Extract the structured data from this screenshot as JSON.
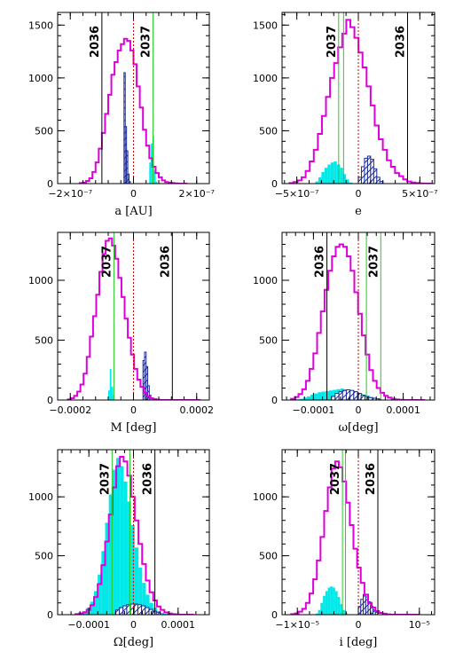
{
  "chart_data": [
    {
      "type": "histogram",
      "xlabel": "a [AU]",
      "xlim": [
        -2.4e-07,
        2.4e-07
      ],
      "ylim": [
        0,
        1620
      ],
      "xticks": [
        {
          "v": -2e-07,
          "label": "−2×10⁻⁷"
        },
        {
          "v": 0,
          "label": "0"
        },
        {
          "v": 2e-07,
          "label": "2×10⁻⁷"
        }
      ],
      "yticks": [
        {
          "v": 0,
          "label": "0"
        },
        {
          "v": 500,
          "label": "500"
        },
        {
          "v": 1000,
          "label": "1000"
        },
        {
          "v": 1500,
          "label": "1500"
        }
      ],
      "magenta": {
        "start": -1.7e-07,
        "step": 1e-08,
        "values": [
          5,
          10,
          25,
          50,
          110,
          200,
          330,
          480,
          660,
          840,
          1030,
          1150,
          1260,
          1320,
          1370,
          1350,
          1260,
          1130,
          920,
          720,
          510,
          360,
          240,
          160,
          100,
          60,
          30,
          15,
          8,
          5,
          2,
          0,
          0,
          0
        ]
      },
      "cyan": {
        "start": 5e-08,
        "step": 5e-09,
        "values": [
          200,
          380,
          450,
          120,
          20
        ]
      },
      "hatch": {
        "start": -3e-08,
        "step": 4e-09,
        "values": [
          1050,
          540,
          310,
          90,
          20
        ]
      },
      "lines": [
        {
          "x": -1e-07,
          "label": "2036",
          "color": "#000000"
        },
        {
          "x": 6.2e-08,
          "label": "2037",
          "color": "#22cc22"
        }
      ],
      "zero_line": true
    },
    {
      "type": "histogram",
      "xlabel": "e",
      "xlim": [
        -6.2e-07,
        6.2e-07
      ],
      "ylim": [
        0,
        1620
      ],
      "xticks": [
        {
          "v": -5e-07,
          "label": "−5×10⁻⁷"
        },
        {
          "v": 0,
          "label": "0"
        },
        {
          "v": 5e-07,
          "label": "5×10⁻⁷"
        }
      ],
      "yticks": [
        {
          "v": 0,
          "label": "0"
        },
        {
          "v": 500,
          "label": "500"
        },
        {
          "v": 1000,
          "label": "1000"
        },
        {
          "v": 1500,
          "label": "1500"
        }
      ],
      "magenta": {
        "start": -5.6e-07,
        "step": 3.3e-08,
        "values": [
          5,
          15,
          30,
          60,
          120,
          210,
          320,
          470,
          640,
          820,
          1000,
          1140,
          1290,
          1420,
          1550,
          1480,
          1380,
          1240,
          1100,
          920,
          740,
          550,
          420,
          320,
          220,
          160,
          100,
          70,
          40,
          20,
          10,
          5,
          2,
          0,
          0
        ]
      },
      "cyan": {
        "start": -3.5e-07,
        "step": 2.5e-08,
        "values": [
          20,
          60,
          110,
          150,
          180,
          200,
          210,
          180,
          150,
          90,
          40,
          10
        ]
      },
      "hatch": {
        "start": 0,
        "step": 2.5e-08,
        "values": [
          60,
          160,
          240,
          260,
          230,
          140,
          60,
          20
        ]
      },
      "lines": [
        {
          "x": -1.6e-07,
          "label": "2037",
          "color": "#22cc22"
        },
        {
          "x": -1.2e-07,
          "label": "",
          "color": "#22cc22"
        },
        {
          "x": 4e-07,
          "label": "2036",
          "color": "#000000"
        }
      ],
      "zero_line": true
    },
    {
      "type": "histogram",
      "xlabel": "M [deg]",
      "xlim": [
        -0.00024,
        0.00024
      ],
      "ylim": [
        0,
        1400
      ],
      "xticks": [
        {
          "v": -0.0002,
          "label": "−0.0002"
        },
        {
          "v": 0,
          "label": "0"
        },
        {
          "v": 0.0002,
          "label": "0.0002"
        }
      ],
      "yticks": [
        {
          "v": 0,
          "label": "0"
        },
        {
          "v": 500,
          "label": "500"
        },
        {
          "v": 1000,
          "label": "1000"
        }
      ],
      "magenta": {
        "start": -0.000208,
        "step": 1e-05,
        "values": [
          5,
          15,
          35,
          70,
          130,
          220,
          360,
          530,
          700,
          880,
          1070,
          1220,
          1330,
          1350,
          1290,
          1180,
          1020,
          860,
          680,
          520,
          380,
          260,
          170,
          110,
          60,
          30,
          15,
          8,
          3,
          0,
          0,
          0,
          0,
          0,
          0,
          0,
          0,
          0,
          0,
          0,
          0,
          0
        ]
      },
      "cyan": {
        "start": -8e-05,
        "step": 5e-06,
        "values": [
          80,
          260,
          110,
          40
        ]
      },
      "hatch": {
        "start": 3e-05,
        "step": 5e-06,
        "values": [
          330,
          400,
          280,
          120,
          40
        ]
      },
      "lines": [
        {
          "x": -6.2e-05,
          "label": "2037",
          "color": "#22cc22"
        },
        {
          "x": 0.000123,
          "label": "2036",
          "color": "#000000"
        }
      ],
      "zero_line": true
    },
    {
      "type": "histogram",
      "xlabel": "ω[deg]",
      "xlim": [
        -0.00017,
        0.00017
      ],
      "ylim": [
        0,
        1400
      ],
      "xticks": [
        {
          "v": -0.0001,
          "label": "−0.0001"
        },
        {
          "v": 0,
          "label": "0"
        },
        {
          "v": 0.0001,
          "label": "0.0001"
        }
      ],
      "yticks": [
        {
          "v": 0,
          "label": "0"
        },
        {
          "v": 500,
          "label": "500"
        },
        {
          "v": 1000,
          "label": "1000"
        }
      ],
      "magenta": {
        "start": -0.00015,
        "step": 8.3e-06,
        "values": [
          10,
          25,
          50,
          90,
          160,
          260,
          390,
          560,
          740,
          920,
          1080,
          1200,
          1280,
          1300,
          1280,
          1200,
          1080,
          900,
          720,
          540,
          380,
          250,
          160,
          100,
          60,
          35,
          20,
          10,
          5,
          2,
          0,
          0,
          0,
          0,
          0,
          0
        ]
      },
      "cyan": {
        "start": -0.00014,
        "step": 8.3e-06,
        "values": [
          5,
          10,
          20,
          30,
          45,
          55,
          65,
          70,
          75,
          80,
          85,
          90,
          95,
          90,
          85,
          75,
          65,
          55,
          45,
          35,
          25,
          15,
          8,
          4,
          2
        ]
      },
      "hatch": {
        "start": -6e-05,
        "step": 8.3e-06,
        "values": [
          30,
          55,
          70,
          80,
          85,
          80,
          70,
          55,
          40,
          30,
          20,
          15,
          10
        ]
      },
      "lines": [
        {
          "x": -7e-05,
          "label": "2036",
          "color": "#000000"
        },
        {
          "x": 1.8e-05,
          "label": "",
          "color": "#22cc22"
        },
        {
          "x": 5e-05,
          "label": "2037",
          "color": "#22cc22"
        }
      ],
      "zero_line": true
    },
    {
      "type": "histogram",
      "xlabel": "Ω[deg]",
      "xlim": [
        -0.00017,
        0.00017
      ],
      "ylim": [
        0,
        1400
      ],
      "xticks": [
        {
          "v": -0.0001,
          "label": "−0.0001"
        },
        {
          "v": 0,
          "label": "0"
        },
        {
          "v": 0.0001,
          "label": "0.0001"
        }
      ],
      "yticks": [
        {
          "v": 0,
          "label": "0"
        },
        {
          "v": 500,
          "label": "500"
        },
        {
          "v": 1000,
          "label": "1000"
        }
      ],
      "magenta": {
        "start": -0.00013,
        "step": 8.3e-06,
        "values": [
          5,
          10,
          20,
          40,
          80,
          150,
          260,
          420,
          620,
          850,
          1080,
          1260,
          1340,
          1300,
          1180,
          1000,
          800,
          600,
          430,
          290,
          190,
          120,
          70,
          40,
          20,
          10,
          5,
          2,
          0,
          0,
          0,
          0
        ]
      },
      "cyan": {
        "start": -0.00013,
        "step": 8.3e-06,
        "values": [
          5,
          15,
          30,
          60,
          110,
          200,
          340,
          540,
          780,
          1020,
          1230,
          1330,
          1260,
          1130,
          960,
          760,
          570,
          400,
          270,
          170,
          100,
          60,
          30,
          15,
          8,
          3
        ]
      },
      "hatch": {
        "start": -4e-05,
        "step": 8.3e-06,
        "values": [
          40,
          60,
          75,
          85,
          90,
          90,
          85,
          75,
          60,
          45,
          30,
          20
        ]
      },
      "lines": [
        {
          "x": -4.8e-05,
          "label": "2037",
          "color": "#22cc22"
        },
        {
          "x": -8e-06,
          "label": "",
          "color": "#22cc22"
        },
        {
          "x": 4.8e-05,
          "label": "2036",
          "color": "#000000"
        }
      ],
      "zero_line": true
    },
    {
      "type": "histogram",
      "xlabel": "i [deg]",
      "xlim": [
        -1.25e-05,
        1.25e-05
      ],
      "ylim": [
        0,
        1400
      ],
      "xticks": [
        {
          "v": -1e-05,
          "label": "−1×10⁻⁵"
        },
        {
          "v": 0,
          "label": "0"
        },
        {
          "v": 1e-05,
          "label": "10⁻⁵"
        }
      ],
      "yticks": [
        {
          "v": 0,
          "label": "0"
        },
        {
          "v": 500,
          "label": "500"
        },
        {
          "v": 1000,
          "label": "1000"
        }
      ],
      "magenta": {
        "start": -1.1e-05,
        "step": 6e-07,
        "values": [
          5,
          10,
          25,
          50,
          100,
          180,
          300,
          460,
          660,
          880,
          1080,
          1240,
          1300,
          1250,
          1130,
          950,
          760,
          560,
          400,
          270,
          170,
          100,
          60,
          30,
          15,
          8,
          3,
          0,
          0,
          0,
          0,
          0,
          0,
          0,
          0
        ]
      },
      "cyan": {
        "start": -7e-06,
        "step": 4e-07,
        "values": [
          10,
          40,
          100,
          160,
          200,
          230,
          240,
          230,
          200,
          150,
          90,
          40,
          15
        ]
      },
      "hatch": {
        "start": 0,
        "step": 4e-07,
        "values": [
          70,
          130,
          170,
          150,
          110,
          70,
          40,
          20
        ]
      },
      "lines": [
        {
          "x": -2.6e-06,
          "label": "2037",
          "color": "#22cc22"
        },
        {
          "x": -2.1e-06,
          "label": "",
          "color": "#22cc22"
        },
        {
          "x": 3.2e-06,
          "label": "2036",
          "color": "#000000"
        }
      ],
      "zero_line": true
    }
  ],
  "colors": {
    "magenta": "#dd00dd",
    "cyan": "#00e8e8",
    "hatch": "#1a2a99",
    "zero": "#cc0000",
    "green": "#22cc22",
    "black": "#000000"
  }
}
